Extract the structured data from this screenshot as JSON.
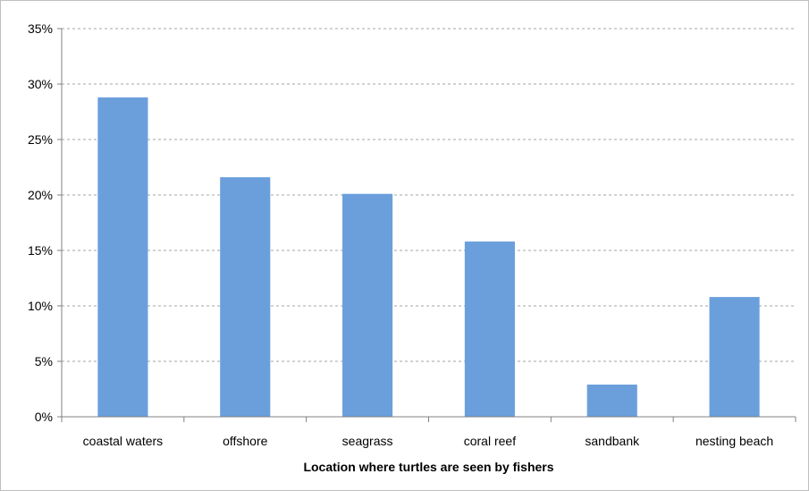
{
  "chart_data": {
    "type": "bar",
    "title": "",
    "xlabel": "Location where turtles are seen by fishers",
    "ylabel": "",
    "categories": [
      "coastal waters",
      "offshore",
      "seagrass",
      "coral reef",
      "sandbank",
      "nesting beach"
    ],
    "values": [
      28.8,
      21.6,
      20.1,
      15.8,
      2.9,
      10.8
    ],
    "ylim": [
      0,
      35
    ],
    "yticks": [
      0,
      5,
      10,
      15,
      20,
      25,
      30,
      35
    ],
    "ytick_labels": [
      "0%",
      "5%",
      "10%",
      "15%",
      "20%",
      "25%",
      "30%",
      "35%"
    ],
    "grid": true,
    "legend": "none",
    "bar_color": "#6a9fdc",
    "grid_color": "#a6a6a6"
  }
}
